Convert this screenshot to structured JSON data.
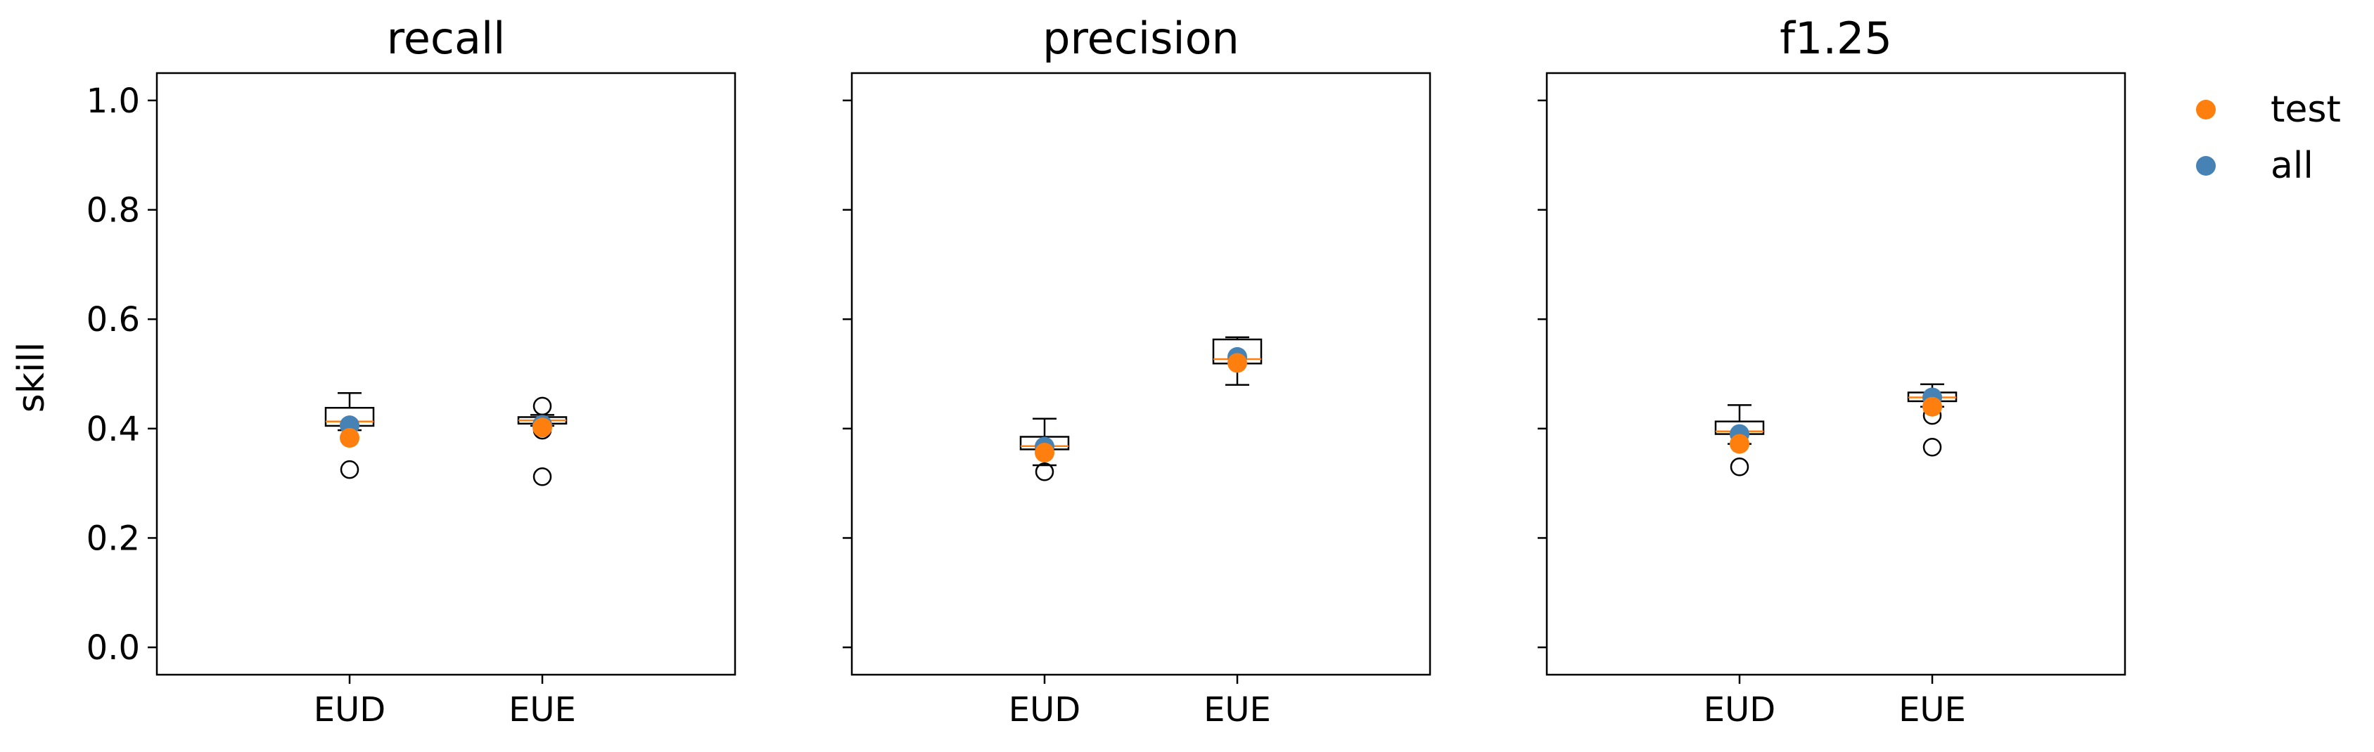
{
  "ylabel": "skill",
  "legend": {
    "placement": "outside-right-top",
    "entries": [
      {
        "label": "test",
        "color": "#ff7f0e"
      },
      {
        "label": "all",
        "color": "#4682b4"
      }
    ]
  },
  "chart_data": [
    {
      "type": "box",
      "title": "recall",
      "categories": [
        "EUD",
        "EUE"
      ],
      "ylim": [
        -0.05,
        1.05
      ],
      "yticks": [
        0.0,
        0.2,
        0.4,
        0.6,
        0.8,
        1.0
      ],
      "ytick_labels": [
        "0.0",
        "0.2",
        "0.4",
        "0.6",
        "0.8",
        "1.0"
      ],
      "grid": false,
      "boxes": [
        {
          "q1": 0.405,
          "median": 0.413,
          "q3": 0.438,
          "whisker_low": 0.397,
          "whisker_high": 0.465,
          "outliers": [
            0.325
          ]
        },
        {
          "q1": 0.409,
          "median": 0.415,
          "q3": 0.421,
          "whisker_low": 0.405,
          "whisker_high": 0.425,
          "outliers": [
            0.441,
            0.397,
            0.312
          ]
        }
      ],
      "series": [
        {
          "name": "test",
          "values": [
            0.383,
            0.402
          ]
        },
        {
          "name": "all",
          "values": [
            0.406,
            0.407
          ]
        }
      ]
    },
    {
      "type": "box",
      "title": "precision",
      "categories": [
        "EUD",
        "EUE"
      ],
      "ylim": [
        -0.05,
        1.05
      ],
      "yticks": [
        0.0,
        0.2,
        0.4,
        0.6,
        0.8,
        1.0
      ],
      "ytick_labels": [
        "",
        "",
        "",
        "",
        "",
        ""
      ],
      "grid": false,
      "boxes": [
        {
          "q1": 0.362,
          "median": 0.368,
          "q3": 0.385,
          "whisker_low": 0.333,
          "whisker_high": 0.418,
          "outliers": [
            0.321
          ]
        },
        {
          "q1": 0.519,
          "median": 0.527,
          "q3": 0.563,
          "whisker_low": 0.48,
          "whisker_high": 0.567,
          "outliers": []
        }
      ],
      "series": [
        {
          "name": "test",
          "values": [
            0.356,
            0.52
          ]
        },
        {
          "name": "all",
          "values": [
            0.367,
            0.531
          ]
        }
      ]
    },
    {
      "type": "box",
      "title": "f1.25",
      "categories": [
        "EUD",
        "EUE"
      ],
      "ylim": [
        -0.05,
        1.05
      ],
      "yticks": [
        0.0,
        0.2,
        0.4,
        0.6,
        0.8,
        1.0
      ],
      "ytick_labels": [
        "",
        "",
        "",
        "",
        "",
        ""
      ],
      "grid": false,
      "boxes": [
        {
          "q1": 0.39,
          "median": 0.395,
          "q3": 0.413,
          "whisker_low": 0.372,
          "whisker_high": 0.443,
          "outliers": [
            0.33
          ]
        },
        {
          "q1": 0.45,
          "median": 0.457,
          "q3": 0.466,
          "whisker_low": 0.44,
          "whisker_high": 0.481,
          "outliers": [
            0.424,
            0.366
          ]
        }
      ],
      "series": [
        {
          "name": "test",
          "values": [
            0.372,
            0.44
          ]
        },
        {
          "name": "all",
          "values": [
            0.39,
            0.457
          ]
        }
      ]
    }
  ]
}
